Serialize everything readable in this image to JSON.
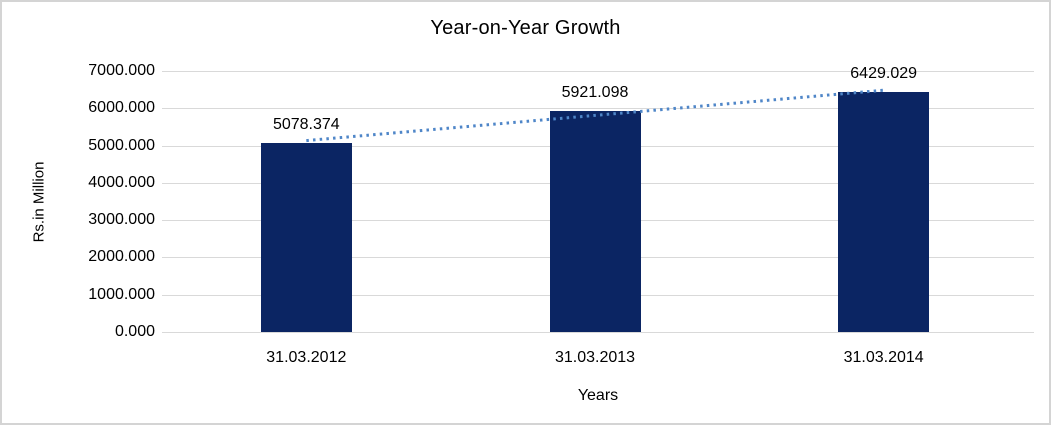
{
  "chart_data": {
    "type": "bar",
    "title": "Year-on-Year Growth",
    "categories": [
      "31.03.2012",
      "31.03.2013",
      "31.03.2014"
    ],
    "values": [
      5078.374,
      5921.098,
      6429.029
    ],
    "value_labels": [
      "5078.374",
      "5921.098",
      "6429.029"
    ],
    "xlabel": "Years",
    "ylabel": "Rs.in Million",
    "ylim": [
      0,
      7000
    ],
    "ytick_step": 1000,
    "ytick_labels": [
      "0.000",
      "1000.000",
      "2000.000",
      "3000.000",
      "4000.000",
      "5000.000",
      "6000.000",
      "7000.000"
    ],
    "grid": true,
    "legend_position": "none",
    "trendline": "linear-dotted",
    "colors": {
      "bar": "#0b2563",
      "trendline": "#4f86c8",
      "gridline": "#d9d9d9",
      "frame_border": "#d4d4d4",
      "text": "#000000"
    }
  }
}
